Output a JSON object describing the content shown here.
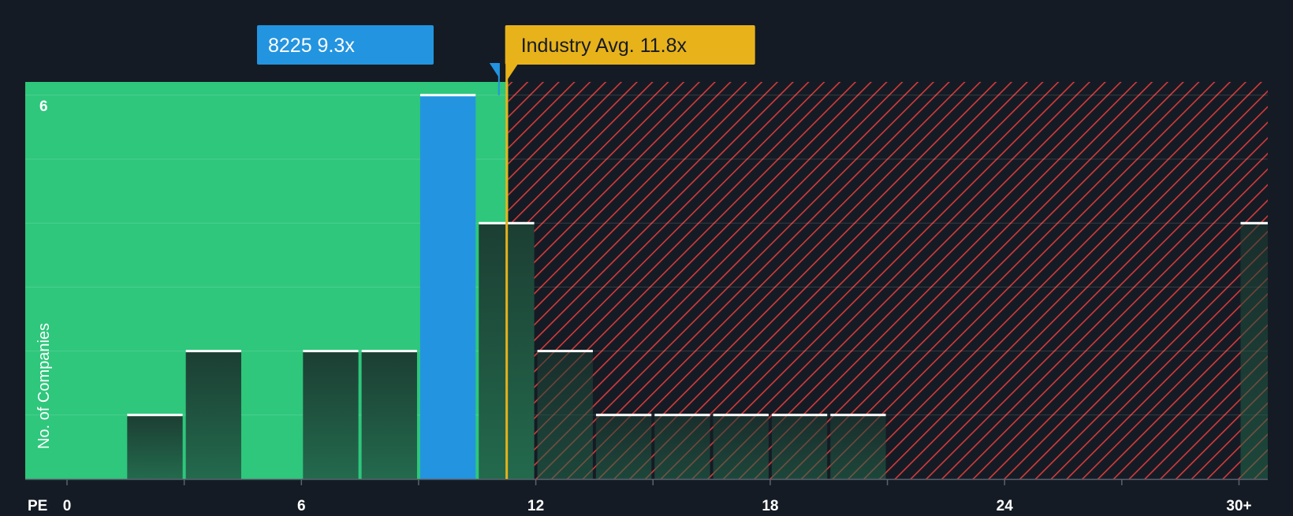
{
  "chart_data": {
    "type": "bar",
    "title": "",
    "xlabel": "PE",
    "ylabel": "No. of Companies",
    "xlim": [
      0,
      30
    ],
    "ylim": [
      0,
      6
    ],
    "x_ticks": [
      {
        "value": 0,
        "label": "0"
      },
      {
        "value": 6,
        "label": "6"
      },
      {
        "value": 12,
        "label": "12"
      },
      {
        "value": 18,
        "label": "18"
      },
      {
        "value": 24,
        "label": "24"
      },
      {
        "value": 30,
        "label": "30+"
      }
    ],
    "y_ticks": [
      {
        "value": 6,
        "label": "6"
      }
    ],
    "bin_width": 1.5,
    "bins": [
      {
        "start": 1.5,
        "count": 1
      },
      {
        "start": 3.0,
        "count": 2
      },
      {
        "start": 6.0,
        "count": 2
      },
      {
        "start": 7.5,
        "count": 2
      },
      {
        "start": 9.0,
        "count": 6,
        "highlight": true
      },
      {
        "start": 10.5,
        "count": 4
      },
      {
        "start": 12.0,
        "count": 2
      },
      {
        "start": 13.5,
        "count": 1
      },
      {
        "start": 15.0,
        "count": 1
      },
      {
        "start": 16.5,
        "count": 1
      },
      {
        "start": 18.0,
        "count": 1
      },
      {
        "start": 19.5,
        "count": 1
      },
      {
        "start": 30.0,
        "count": 4
      }
    ],
    "company": {
      "ticker": "8225",
      "value_label": "9.3x",
      "pe": 9.3
    },
    "industry_avg": {
      "label": "Industry Avg.",
      "value_label": "11.8x",
      "pe": 11.8
    },
    "colors": {
      "background": "#151b24",
      "undervalued_region": "#2ec77c",
      "overvalued_hatch": "#d63a3a",
      "bar": "#1f4a3a",
      "highlight_bar": "#2394e0",
      "industry_marker": "#e8b21a",
      "bar_top": "#ffffff"
    }
  }
}
